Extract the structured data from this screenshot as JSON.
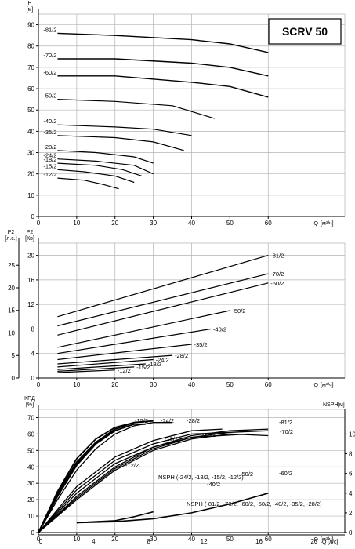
{
  "chart_data": [
    {
      "type": "line",
      "title": "SCRV 50",
      "ylabel": "H",
      "yunit": "[м]",
      "xlabel": "Q",
      "xunit": "[м³/ч]",
      "xlim": [
        0,
        80
      ],
      "ylim": [
        0,
        95
      ],
      "xticks": [
        0,
        10,
        20,
        30,
        40,
        50,
        60
      ],
      "yticks": [
        0,
        10,
        20,
        30,
        40,
        50,
        60,
        70,
        80,
        90
      ],
      "series": [
        {
          "name": "-81/2",
          "x": [
            5,
            20,
            40,
            50,
            60
          ],
          "y": [
            86,
            85,
            83,
            81,
            77
          ]
        },
        {
          "name": "-70/2",
          "x": [
            5,
            20,
            40,
            50,
            60
          ],
          "y": [
            74,
            74,
            72,
            70,
            66
          ]
        },
        {
          "name": "-60/2",
          "x": [
            5,
            20,
            40,
            50,
            60
          ],
          "y": [
            66,
            66,
            63,
            61,
            56
          ]
        },
        {
          "name": "-50/2",
          "x": [
            5,
            20,
            35,
            46
          ],
          "y": [
            55,
            54,
            52,
            46
          ]
        },
        {
          "name": "-40/2",
          "x": [
            5,
            20,
            30,
            40
          ],
          "y": [
            43,
            42,
            41,
            38
          ]
        },
        {
          "name": "-35/2",
          "x": [
            5,
            20,
            30,
            38
          ],
          "y": [
            38,
            37,
            35,
            31
          ]
        },
        {
          "name": "-28/2",
          "x": [
            5,
            15,
            25,
            30
          ],
          "y": [
            31,
            30,
            28,
            25
          ]
        },
        {
          "name": "-24/2",
          "x": [
            5,
            15,
            25,
            30
          ],
          "y": [
            27,
            26,
            24,
            20
          ]
        },
        {
          "name": "-18/2",
          "x": [
            5,
            15,
            22,
            27
          ],
          "y": [
            25,
            24,
            22,
            19
          ]
        },
        {
          "name": "-15/2",
          "x": [
            5,
            12,
            20,
            25
          ],
          "y": [
            22,
            21,
            19,
            16
          ]
        },
        {
          "name": "-12/2",
          "x": [
            5,
            12,
            17,
            21
          ],
          "y": [
            18,
            17,
            15,
            13
          ]
        }
      ]
    },
    {
      "type": "line",
      "ylabel": "P2",
      "yunit": "[Кв]",
      "y2label": "P2",
      "y2unit": "[л.с.]",
      "xlabel": "Q",
      "xunit": "[м³/ч]",
      "xlim": [
        0,
        80
      ],
      "ylim": [
        0,
        22
      ],
      "xticks": [
        0,
        10,
        20,
        30,
        40,
        50,
        60
      ],
      "yticks": [
        0,
        4,
        8,
        12,
        16,
        20
      ],
      "y2ticks": [
        0,
        5,
        10,
        15,
        20,
        25
      ],
      "series": [
        {
          "name": "-81/2",
          "x": [
            5,
            60
          ],
          "y": [
            10,
            20
          ]
        },
        {
          "name": "-70/2",
          "x": [
            5,
            60
          ],
          "y": [
            8.5,
            17
          ]
        },
        {
          "name": "-60/2",
          "x": [
            5,
            60
          ],
          "y": [
            7,
            15.5
          ]
        },
        {
          "name": "-50/2",
          "x": [
            5,
            50
          ],
          "y": [
            5,
            11
          ]
        },
        {
          "name": "-40/2",
          "x": [
            5,
            45
          ],
          "y": [
            4,
            8
          ]
        },
        {
          "name": "-35/2",
          "x": [
            5,
            40
          ],
          "y": [
            3,
            5.5
          ]
        },
        {
          "name": "-28/2",
          "x": [
            5,
            35
          ],
          "y": [
            2.3,
            3.7
          ]
        },
        {
          "name": "-24/2",
          "x": [
            5,
            30
          ],
          "y": [
            1.8,
            3
          ]
        },
        {
          "name": "-18/2",
          "x": [
            5,
            28
          ],
          "y": [
            1.4,
            2.3
          ]
        },
        {
          "name": "-15/2",
          "x": [
            5,
            25
          ],
          "y": [
            1.1,
            1.8
          ]
        },
        {
          "name": "-12/2",
          "x": [
            5,
            20
          ],
          "y": [
            0.9,
            1.3
          ]
        }
      ]
    },
    {
      "type": "line",
      "ylabel": "КПД",
      "yunit": "[%]",
      "y2label": "NSPH",
      "y2unit": "[м]",
      "xlabel": "Q",
      "xunit": "[м³/ч]",
      "x2label": "Q",
      "x2unit": "[л/с]",
      "xlim": [
        0,
        80
      ],
      "ylim": [
        0,
        75
      ],
      "xticks": [
        0,
        10,
        20,
        30,
        40,
        50,
        60
      ],
      "yticks": [
        0,
        10,
        20,
        30,
        40,
        50,
        60,
        70
      ],
      "x2ticks": [
        0,
        4,
        8,
        12,
        16,
        20,
        24
      ],
      "y2ticks": [
        0,
        2,
        4,
        6,
        8,
        10
      ],
      "efficiency_series": [
        {
          "name": "-15/2",
          "x": [
            0,
            5,
            10,
            15,
            20,
            25
          ],
          "y": [
            0,
            25,
            45,
            57,
            64,
            67
          ]
        },
        {
          "name": "-12/2",
          "x": [
            0,
            5,
            10,
            15,
            20
          ],
          "y": [
            0,
            24,
            43,
            55,
            62
          ]
        },
        {
          "name": "-24/2",
          "x": [
            0,
            5,
            10,
            15,
            20,
            25,
            30
          ],
          "y": [
            0,
            23,
            42,
            55,
            63,
            67,
            68
          ]
        },
        {
          "name": "-18/2",
          "x": [
            0,
            5,
            10,
            15,
            20,
            25,
            28
          ],
          "y": [
            0,
            22,
            41,
            54,
            62,
            66,
            66
          ]
        },
        {
          "name": "-28/2",
          "x": [
            0,
            5,
            10,
            15,
            20,
            25,
            30,
            35
          ],
          "y": [
            0,
            20,
            38,
            51,
            60,
            65,
            67,
            67
          ]
        },
        {
          "name": "-35/2",
          "x": [
            0,
            10,
            20,
            30,
            40,
            48
          ],
          "y": [
            0,
            28,
            46,
            56,
            62,
            63
          ]
        },
        {
          "name": "-40/2",
          "x": [
            0,
            10,
            20,
            30,
            40,
            50
          ],
          "y": [
            0,
            26,
            44,
            54,
            60,
            61
          ]
        },
        {
          "name": "-50/2",
          "x": [
            0,
            10,
            20,
            30,
            40,
            55
          ],
          "y": [
            0,
            24,
            42,
            52,
            58,
            60
          ]
        },
        {
          "name": "-81/2",
          "x": [
            0,
            10,
            20,
            30,
            40,
            50,
            60
          ],
          "y": [
            0,
            22,
            40,
            52,
            59,
            62,
            63
          ]
        },
        {
          "name": "-70/2",
          "x": [
            0,
            10,
            20,
            30,
            40,
            50,
            60
          ],
          "y": [
            0,
            21,
            39,
            51,
            58,
            61,
            62
          ]
        },
        {
          "name": "-60/2",
          "x": [
            0,
            10,
            20,
            30,
            40,
            50,
            60
          ],
          "y": [
            0,
            20,
            38,
            50,
            57,
            60,
            59
          ]
        }
      ],
      "nsph_series": [
        {
          "name": "NSPH (-24/2, -18/2, -15/2, -12/2)",
          "x": [
            10,
            20,
            25,
            30
          ],
          "y2": [
            1.0,
            1.2,
            1.6,
            2.1
          ]
        },
        {
          "name": "NSPH (-81/2, -70/2, -60/2, -50/2, -40/2, -35/2, -28/2)",
          "x": [
            10,
            20,
            30,
            40,
            50,
            60
          ],
          "y2": [
            1.0,
            1.1,
            1.4,
            2.0,
            2.9,
            4.0
          ]
        }
      ]
    }
  ]
}
